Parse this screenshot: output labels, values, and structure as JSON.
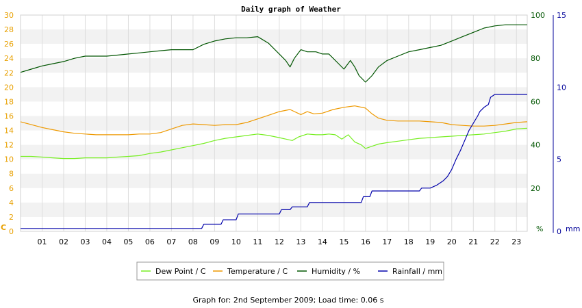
{
  "chart_data": {
    "type": "line",
    "title": "Daily graph of Weather",
    "x_ticks": [
      "01",
      "02",
      "03",
      "04",
      "05",
      "06",
      "07",
      "08",
      "09",
      "10",
      "11",
      "12",
      "13",
      "14",
      "15",
      "16",
      "17",
      "18",
      "19",
      "20",
      "21",
      "22",
      "23"
    ],
    "xlim": [
      0,
      23.5
    ],
    "grid": true,
    "legend_position": "bottom-center",
    "axes": {
      "left": {
        "unit": "C",
        "ylim": [
          0,
          30
        ],
        "ticks": [
          0,
          2,
          4,
          6,
          8,
          10,
          12,
          14,
          16,
          18,
          20,
          22,
          24,
          26,
          28,
          30
        ],
        "color": "#e8a000"
      },
      "right1": {
        "unit": "%",
        "ylim": [
          0,
          100
        ],
        "ticks": [
          0,
          20,
          40,
          60,
          80,
          100
        ],
        "color": "#005500"
      },
      "right2": {
        "unit": "mm",
        "ylim": [
          0,
          15
        ],
        "ticks": [
          0,
          5,
          10,
          15
        ],
        "color": "#000099"
      }
    },
    "series": [
      {
        "name": "Dew Point / C",
        "axis": "left",
        "color": "#77ee22",
        "x": [
          0,
          0.5,
          1,
          1.5,
          2,
          2.5,
          3,
          3.5,
          4,
          4.5,
          5,
          5.5,
          6,
          6.5,
          7,
          7.5,
          8,
          8.5,
          9,
          9.5,
          10,
          10.5,
          11,
          11.5,
          12,
          12.3,
          12.6,
          12.9,
          13.3,
          13.7,
          14,
          14.3,
          14.6,
          14.9,
          15.2,
          15.5,
          15.8,
          16,
          16.3,
          16.6,
          17,
          17.5,
          18,
          18.5,
          19,
          19.5,
          20,
          20.5,
          21,
          21.5,
          22,
          22.5,
          23,
          23.5
        ],
        "y": [
          10.4,
          10.4,
          10.3,
          10.2,
          10.1,
          10.1,
          10.2,
          10.2,
          10.2,
          10.3,
          10.4,
          10.5,
          10.8,
          11.0,
          11.3,
          11.6,
          11.9,
          12.2,
          12.6,
          12.9,
          13.1,
          13.3,
          13.5,
          13.3,
          13.0,
          12.8,
          12.6,
          13.1,
          13.5,
          13.4,
          13.4,
          13.5,
          13.4,
          12.8,
          13.4,
          12.4,
          12.0,
          11.5,
          11.8,
          12.1,
          12.3,
          12.5,
          12.7,
          12.9,
          13.0,
          13.1,
          13.2,
          13.3,
          13.4,
          13.5,
          13.7,
          13.9,
          14.2,
          14.3
        ]
      },
      {
        "name": "Temperature / C",
        "axis": "left",
        "color": "#ee9900",
        "x": [
          0,
          0.5,
          1,
          1.5,
          2,
          2.5,
          3,
          3.5,
          4,
          4.5,
          5,
          5.5,
          6,
          6.5,
          7,
          7.5,
          8,
          8.5,
          9,
          9.5,
          10,
          10.5,
          11,
          11.5,
          12,
          12.5,
          13,
          13.3,
          13.6,
          14,
          14.5,
          15,
          15.5,
          16,
          16.3,
          16.6,
          17,
          17.5,
          18,
          18.5,
          19,
          19.5,
          20,
          20.5,
          21,
          21.5,
          22,
          22.5,
          23,
          23.5
        ],
        "y": [
          15.2,
          14.8,
          14.4,
          14.1,
          13.8,
          13.6,
          13.5,
          13.4,
          13.4,
          13.4,
          13.4,
          13.5,
          13.5,
          13.7,
          14.2,
          14.7,
          14.9,
          14.8,
          14.7,
          14.8,
          14.8,
          15.1,
          15.6,
          16.1,
          16.6,
          16.9,
          16.2,
          16.6,
          16.3,
          16.4,
          16.9,
          17.2,
          17.4,
          17.1,
          16.3,
          15.7,
          15.4,
          15.3,
          15.3,
          15.3,
          15.2,
          15.1,
          14.8,
          14.7,
          14.6,
          14.6,
          14.7,
          14.9,
          15.1,
          15.2
        ]
      },
      {
        "name": "Humidity / %",
        "axis": "right1",
        "color": "#005500",
        "x": [
          0,
          0.5,
          1,
          1.5,
          2,
          2.5,
          3,
          3.5,
          4,
          4.5,
          5,
          5.5,
          6,
          6.5,
          7,
          7.5,
          8,
          8.5,
          9,
          9.5,
          10,
          10.5,
          11,
          11.5,
          12,
          12.3,
          12.5,
          12.7,
          13,
          13.3,
          13.7,
          14,
          14.3,
          14.5,
          14.7,
          15,
          15.3,
          15.5,
          15.7,
          16,
          16.3,
          16.6,
          17,
          17.5,
          18,
          18.5,
          19,
          19.5,
          20,
          20.5,
          21,
          21.5,
          22,
          22.5,
          23,
          23.5
        ],
        "y": [
          73.5,
          75,
          76.5,
          77.5,
          78.5,
          80,
          81,
          81,
          81,
          81.5,
          82,
          82.5,
          83,
          83.5,
          84,
          84,
          84,
          86.5,
          88,
          89,
          89.5,
          89.5,
          90,
          87,
          82,
          79,
          76,
          80,
          84,
          83,
          83,
          82,
          82,
          80,
          78,
          75,
          79,
          76,
          72,
          69,
          72,
          76,
          79,
          81,
          83,
          84,
          85,
          86,
          88,
          90,
          92,
          94,
          95,
          95.5,
          95.5,
          95.5
        ]
      },
      {
        "name": "Rainfall / mm",
        "axis": "right2",
        "color": "#0000aa",
        "x": [
          0,
          8.4,
          8.5,
          9.3,
          9.4,
          10.0,
          10.1,
          12.0,
          12.1,
          12.5,
          12.6,
          13.3,
          13.4,
          15.8,
          15.9,
          16.2,
          16.3,
          18.5,
          18.6,
          19.0,
          19.3,
          19.6,
          19.8,
          20.0,
          20.2,
          20.4,
          20.6,
          20.8,
          21.0,
          21.2,
          21.3,
          21.5,
          21.7,
          21.8,
          22.0,
          22.5,
          23.0,
          23.5
        ],
        "y": [
          0.2,
          0.2,
          0.5,
          0.5,
          0.8,
          0.8,
          1.2,
          1.2,
          1.5,
          1.5,
          1.7,
          1.7,
          2.0,
          2.0,
          2.4,
          2.4,
          2.8,
          2.8,
          3.0,
          3.0,
          3.2,
          3.5,
          3.8,
          4.3,
          5.0,
          5.6,
          6.3,
          7.0,
          7.5,
          8.0,
          8.3,
          8.6,
          8.8,
          9.3,
          9.5,
          9.5,
          9.5,
          9.5
        ]
      }
    ]
  },
  "footer": {
    "text": "Graph for: 2nd September 2009; Load time: 0.06 s"
  }
}
